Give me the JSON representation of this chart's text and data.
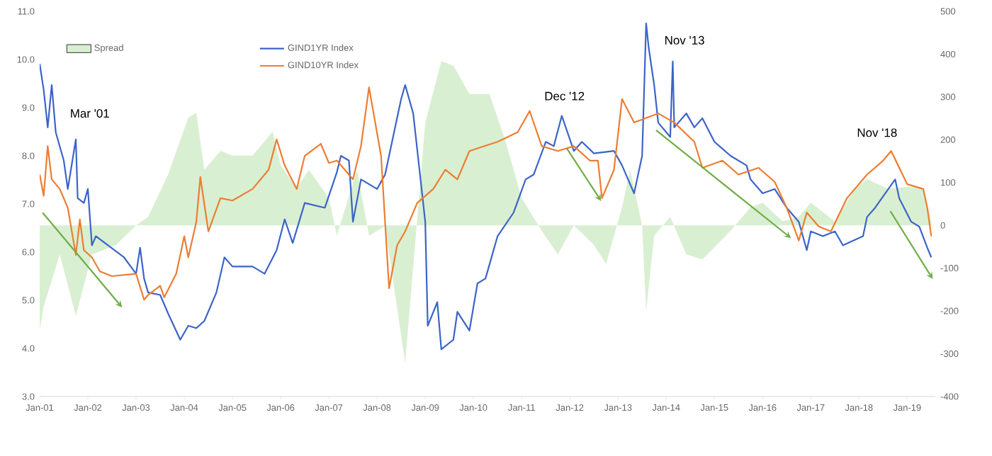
{
  "chart_data": {
    "type": "line",
    "annotations": [
      "Mar '01",
      "Dec '12",
      "Nov '13",
      "Nov '18"
    ],
    "series": [
      {
        "name": "Spread",
        "type": "area",
        "axis": "y2",
        "color": "#d9efd2",
        "x": [
          "2001-01",
          "2001-02",
          "2001-06",
          "2001-10",
          "2002-02",
          "2002-08",
          "2003-01",
          "2003-04",
          "2003-09",
          "2004-02",
          "2004-04",
          "2004-06",
          "2004-10",
          "2005-01",
          "2005-06",
          "2005-11",
          "2006-01",
          "2006-05",
          "2006-08",
          "2007-01",
          "2007-03",
          "2007-08",
          "2007-11",
          "2008-03",
          "2008-08",
          "2009-01",
          "2009-05",
          "2009-08",
          "2009-12",
          "2010-05",
          "2010-09",
          "2011-01",
          "2011-06",
          "2011-10",
          "2012-02",
          "2012-07",
          "2012-10",
          "2013-02",
          "2013-04",
          "2013-07",
          "2013-08",
          "2013-10",
          "2014-02",
          "2014-06",
          "2014-10",
          "2015-05",
          "2015-10",
          "2016-01",
          "2016-06",
          "2016-10",
          "2017-01",
          "2017-07",
          "2017-12",
          "2018-03",
          "2018-08",
          "2019-01",
          "2019-05",
          "2019-07"
        ],
        "values": [
          -245,
          -190,
          -68,
          -212,
          -68,
          -46,
          0,
          20,
          119,
          252,
          263,
          130,
          174,
          163,
          163,
          219,
          141,
          86,
          130,
          64,
          -24,
          130,
          -24,
          -2,
          -322,
          240,
          384,
          373,
          307,
          307,
          196,
          64,
          -13,
          -68,
          0,
          -46,
          -90,
          42,
          130,
          0,
          -201,
          -24,
          20,
          -68,
          -80,
          -13,
          42,
          53,
          9,
          20,
          53,
          9,
          86,
          108,
          86,
          90,
          86,
          9
        ]
      },
      {
        "name": "GIND1YR Index",
        "color": "#3b64c8",
        "x": [
          "2001-01",
          "2001-02",
          "2001-03",
          "2001-04",
          "2001-05",
          "2001-07",
          "2001-08",
          "2001-10-01",
          "2001-10-15",
          "2001-12",
          "2002-01",
          "2002-02",
          "2002-03",
          "2002-06",
          "2002-10",
          "2003-01",
          "2003-02",
          "2003-03",
          "2003-04",
          "2003-07",
          "2003-09",
          "2003-12",
          "2004-02",
          "2004-04",
          "2004-06",
          "2004-09",
          "2004-11",
          "2005-01",
          "2005-06",
          "2005-09",
          "2005-12",
          "2006-02",
          "2006-04",
          "2006-07",
          "2006-12",
          "2007-03",
          "2007-04",
          "2007-06",
          "2007-07",
          "2007-09",
          "2008-01",
          "2008-03",
          "2008-07",
          "2008-08",
          "2008-10",
          "2009-01-01",
          "2009-01-20",
          "2009-04",
          "2009-05",
          "2009-08",
          "2009-09",
          "2009-12",
          "2010-02",
          "2010-04",
          "2010-07",
          "2010-11",
          "2011-02",
          "2011-04",
          "2011-07",
          "2011-09",
          "2011-11",
          "2012-02",
          "2012-04",
          "2012-07",
          "2012-12",
          "2013-02",
          "2013-05",
          "2013-07",
          "2013-08-01",
          "2013-08-20",
          "2013-10",
          "2013-11",
          "2014-02-01",
          "2014-02-20",
          "2014-03",
          "2014-06",
          "2014-08",
          "2014-10",
          "2015-01",
          "2015-05",
          "2015-09",
          "2015-10",
          "2016-01",
          "2016-04",
          "2016-07",
          "2016-10",
          "2016-12",
          "2017-01",
          "2017-04",
          "2017-07",
          "2017-09",
          "2018-02",
          "2018-03",
          "2018-05",
          "2018-10",
          "2018-11",
          "2019-02",
          "2019-04",
          "2019-06",
          "2019-07"
        ],
        "values": [
          9.91,
          9.37,
          8.59,
          9.47,
          8.49,
          7.9,
          7.31,
          8.34,
          7.12,
          7.02,
          7.31,
          6.14,
          6.33,
          6.14,
          5.89,
          5.55,
          6.09,
          5.45,
          5.16,
          5.11,
          4.72,
          4.18,
          4.47,
          4.42,
          4.57,
          5.16,
          5.89,
          5.7,
          5.7,
          5.55,
          6.04,
          6.68,
          6.19,
          7.02,
          6.92,
          7.66,
          8.0,
          7.9,
          6.63,
          7.51,
          7.31,
          7.61,
          9.18,
          9.47,
          8.88,
          6.63,
          4.47,
          4.96,
          3.98,
          4.18,
          4.76,
          4.37,
          5.35,
          5.45,
          6.33,
          6.82,
          7.51,
          7.61,
          8.29,
          8.2,
          8.83,
          8.1,
          8.29,
          8.05,
          8.1,
          7.8,
          7.22,
          8.0,
          10.75,
          10.25,
          9.47,
          8.69,
          8.39,
          9.96,
          8.59,
          8.88,
          8.59,
          8.78,
          8.29,
          8.0,
          7.8,
          7.51,
          7.22,
          7.31,
          6.92,
          6.63,
          6.04,
          6.43,
          6.33,
          6.43,
          6.14,
          6.33,
          6.73,
          6.92,
          7.51,
          7.12,
          6.63,
          6.53,
          6.09,
          5.89
        ]
      },
      {
        "name": "GIND10YR Index",
        "color": "#ed7d31",
        "x": [
          "2001-01",
          "2001-02",
          "2001-03",
          "2001-04",
          "2001-06",
          "2001-08",
          "2001-10",
          "2001-11",
          "2001-12",
          "2002-02",
          "2002-04",
          "2002-07",
          "2003-01",
          "2003-03",
          "2003-04",
          "2003-07",
          "2003-08",
          "2003-11",
          "2004-01",
          "2004-02",
          "2004-04",
          "2004-05",
          "2004-07",
          "2004-10",
          "2005-01",
          "2005-06",
          "2005-10",
          "2005-12",
          "2006-02",
          "2006-05",
          "2006-07",
          "2006-11",
          "2007-01",
          "2007-03",
          "2007-07",
          "2007-09",
          "2007-11",
          "2008-02",
          "2008-04",
          "2008-06",
          "2008-08",
          "2008-11",
          "2009-03",
          "2009-06",
          "2009-09",
          "2009-12",
          "2010-07",
          "2010-12",
          "2011-03",
          "2011-06",
          "2011-10",
          "2012-02",
          "2012-06",
          "2012-08",
          "2012-09",
          "2012-12",
          "2013-02",
          "2013-05",
          "2013-11",
          "2014-03",
          "2014-08",
          "2014-10",
          "2015-03",
          "2015-07",
          "2015-12",
          "2016-04",
          "2016-07",
          "2016-10",
          "2016-12",
          "2017-03",
          "2017-06",
          "2017-10",
          "2018-03",
          "2018-07",
          "2018-09",
          "2019-01",
          "2019-05",
          "2019-06",
          "2019-07"
        ],
        "values": [
          7.61,
          7.17,
          8.2,
          7.51,
          7.31,
          6.92,
          5.94,
          6.68,
          6.04,
          5.89,
          5.6,
          5.5,
          5.55,
          5.01,
          5.11,
          5.3,
          5.06,
          5.55,
          6.33,
          5.89,
          6.63,
          7.56,
          6.43,
          7.12,
          7.07,
          7.31,
          7.71,
          8.34,
          7.8,
          7.31,
          8.0,
          8.25,
          7.85,
          7.9,
          7.51,
          8.2,
          9.42,
          8.0,
          5.25,
          6.14,
          6.43,
          7.02,
          7.31,
          7.71,
          7.51,
          8.1,
          8.29,
          8.49,
          8.93,
          8.2,
          8.1,
          8.2,
          7.9,
          7.9,
          7.12,
          7.71,
          9.18,
          8.69,
          8.88,
          8.69,
          8.29,
          7.75,
          7.9,
          7.61,
          7.75,
          7.46,
          6.92,
          6.24,
          6.82,
          6.53,
          6.43,
          7.12,
          7.61,
          7.9,
          8.1,
          7.41,
          7.31,
          6.92,
          6.33
        ]
      }
    ],
    "xlim": [
      "2001-01",
      "2019-08"
    ],
    "xticks": [
      {
        "value": "2001-01",
        "label": "Jan-01"
      },
      {
        "value": "2002-01",
        "label": "Jan-02"
      },
      {
        "value": "2003-01",
        "label": "Jan-03"
      },
      {
        "value": "2004-01",
        "label": "Jan-04"
      },
      {
        "value": "2005-01",
        "label": "Jan-05"
      },
      {
        "value": "2006-01",
        "label": "Jan-06"
      },
      {
        "value": "2007-01",
        "label": "Jan-07"
      },
      {
        "value": "2008-01",
        "label": "Jan-08"
      },
      {
        "value": "2009-01",
        "label": "Jan-09"
      },
      {
        "value": "2010-01",
        "label": "Jan-10"
      },
      {
        "value": "2011-01",
        "label": "Jan-11"
      },
      {
        "value": "2012-01",
        "label": "Jan-12"
      },
      {
        "value": "2013-01",
        "label": "Jan-13"
      },
      {
        "value": "2014-01",
        "label": "Jan-14"
      },
      {
        "value": "2015-01",
        "label": "Jan-15"
      },
      {
        "value": "2016-01",
        "label": "Jan-16"
      },
      {
        "value": "2017-01",
        "label": "Jan-17"
      },
      {
        "value": "2018-01",
        "label": "Jan-18"
      },
      {
        "value": "2019-01",
        "label": "Jan-19"
      }
    ],
    "ylim": [
      3,
      11
    ],
    "yticks": [
      {
        "value": 3,
        "label": "3.0"
      },
      {
        "value": 4,
        "label": "4.0"
      },
      {
        "value": 5,
        "label": "5.0"
      },
      {
        "value": 6,
        "label": "6.0"
      },
      {
        "value": 7,
        "label": "7.0"
      },
      {
        "value": 8,
        "label": "8.0"
      },
      {
        "value": 9,
        "label": "9.0"
      },
      {
        "value": 10,
        "label": "10.0"
      },
      {
        "value": 11,
        "label": "11.0"
      }
    ],
    "y2lim": [
      -400,
      500
    ],
    "y2ticks": [
      -400,
      -300,
      -200,
      -100,
      0,
      100,
      200,
      300,
      400,
      500
    ],
    "grid": false,
    "legend": "top left"
  }
}
